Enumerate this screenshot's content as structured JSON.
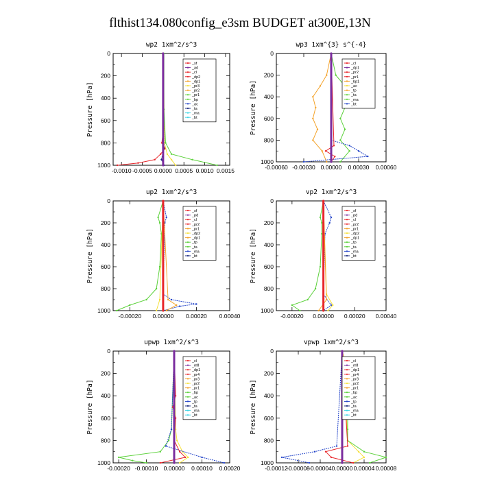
{
  "figure_title": "flthist134.080config_e3sm  BUDGET at300E,13N",
  "colors": {
    "red": "#e8262b",
    "purple": "#7b2c9e",
    "orange": "#f4a32a",
    "yellow": "#f5e03a",
    "green": "#5cd13b",
    "blue": "#2445c9",
    "navy": "#1a2a80",
    "cyan": "#3fd6e6",
    "black": "#000000"
  },
  "chart_data": [
    {
      "type": "line",
      "title": "wp2  1xm^2/s^3",
      "ylabel": "Pressure [hPa]",
      "xlim": [
        -0.0012,
        0.0016
      ],
      "ylim": [
        1000,
        0
      ],
      "x_ticks": [
        "-0.0010",
        "-0.0005",
        "0.0000",
        "0.0005",
        "0.0010",
        "0.0015"
      ],
      "y_ticks": [
        "0",
        "200",
        "400",
        "600",
        "800",
        "1000"
      ],
      "legend": [
        "_sf",
        "_ad",
        "_cl",
        "_dp2",
        "_dp1",
        "_pr3",
        "_pr2",
        "_pr1",
        "_bp",
        "_ac",
        "_ta",
        "_ma",
        "_bt"
      ],
      "series": [
        {
          "name": "_dp1",
          "color": "red",
          "p": [
            0,
            700,
            800,
            850,
            900,
            950,
            980,
            1000
          ],
          "x": [
            0,
            0,
            -3e-05,
            5e-05,
            -6e-05,
            -0.0002,
            -0.0006,
            -0.0011
          ]
        },
        {
          "name": "_pr2",
          "color": "yellow",
          "p": [
            0,
            800,
            900,
            950,
            1000
          ],
          "x": [
            1e-05,
            3e-05,
            0.0001,
            0.0002,
            0.0003
          ]
        },
        {
          "name": "_bp",
          "color": "green",
          "p": [
            0,
            500,
            800,
            900,
            950,
            1000
          ],
          "x": [
            2e-05,
            2e-05,
            6e-05,
            0.0002,
            0.0007,
            0.0013
          ]
        },
        {
          "name": "_ta",
          "color": "navy",
          "p": [
            0,
            850,
            950,
            1000
          ],
          "x": [
            0,
            2e-05,
            -4e-05,
            2e-05
          ]
        },
        {
          "name": "_bt",
          "color": "purple",
          "p": [
            0,
            1000
          ],
          "x": [
            0,
            0
          ]
        }
      ]
    },
    {
      "type": "line",
      "title": "wp3  1xm^{3} s^{-4}",
      "ylabel": "Pressure [hPa]",
      "xlim": [
        -0.0006,
        0.0006
      ],
      "ylim": [
        1000,
        0
      ],
      "x_ticks": [
        "-0.00060",
        "-0.00030",
        "0.00000",
        "0.00030",
        "0.00060"
      ],
      "y_ticks": [
        "0",
        "200",
        "400",
        "600",
        "800",
        "1000"
      ],
      "legend": [
        "_cl",
        "_dp1",
        "_pr2",
        "_pr1",
        "_bp1",
        "_ac",
        "_tp",
        "_ta",
        "_ma",
        "_bt"
      ],
      "series": [
        {
          "name": "_pr2",
          "color": "orange",
          "p": [
            0,
            200,
            300,
            400,
            500,
            600,
            700,
            800,
            900,
            1000
          ],
          "x": [
            0,
            -5e-05,
            -0.00012,
            -0.0002,
            -0.00017,
            -0.0002,
            -0.00015,
            -0.0002,
            -0.0001,
            -5e-05
          ]
        },
        {
          "name": "_bp1",
          "color": "green",
          "p": [
            0,
            200,
            300,
            400,
            500,
            600,
            700,
            800,
            900,
            1000
          ],
          "x": [
            0,
            5e-05,
            0.00015,
            0.0002,
            0.00015,
            0.0001,
            0.00015,
            0.0001,
            0.0002,
            0.0001
          ]
        },
        {
          "name": "_tp",
          "color": "blue",
          "p": [
            0,
            800,
            850,
            900,
            950,
            1000
          ],
          "x": [
            0,
            0,
            0.0002,
            0.0003,
            0.0004,
            -0.0003
          ]
        },
        {
          "name": "_dp1",
          "color": "red",
          "p": [
            0,
            850,
            900,
            950,
            1000
          ],
          "x": [
            0,
            3e-05,
            -6e-05,
            4e-05,
            0
          ]
        },
        {
          "name": "_bt",
          "color": "purple",
          "p": [
            0,
            1000
          ],
          "x": [
            0,
            0
          ]
        }
      ]
    },
    {
      "type": "line",
      "title": "up2  1xm^2/s^3",
      "ylabel": "Pressure [hPa]",
      "xlim": [
        -0.0003,
        0.0004
      ],
      "ylim": [
        1000,
        0
      ],
      "x_ticks": [
        "-0.00020",
        "0.00000",
        "0.00020",
        "0.00040"
      ],
      "y_ticks": [
        "0",
        "200",
        "400",
        "600",
        "800",
        "1000"
      ],
      "legend": [
        "_sf",
        "_pd",
        "_cl",
        "_pr2",
        "_pr1",
        "_dp2",
        "_dp1",
        "_tp",
        "_ta",
        "_ma",
        "_bt"
      ],
      "series": [
        {
          "name": "_dp2",
          "color": "green",
          "p": [
            0,
            150,
            200,
            300,
            600,
            800,
            900,
            950,
            1000
          ],
          "x": [
            0,
            -3e-05,
            -2e-05,
            -1e-05,
            -2e-05,
            -4e-05,
            -0.0001,
            -0.0002,
            -0.00028
          ]
        },
        {
          "name": "_tp",
          "color": "blue",
          "p": [
            0,
            150,
            200,
            850,
            900,
            940,
            960,
            1000
          ],
          "x": [
            0,
            2e-05,
            1e-05,
            0,
            5e-05,
            0.0002,
            0.0001,
            0
          ]
        },
        {
          "name": "_pr2",
          "color": "orange",
          "p": [
            0,
            900,
            950,
            1000
          ],
          "x": [
            0,
            3e-05,
            8e-05,
            2e-05
          ]
        },
        {
          "name": "_pr1",
          "color": "yellow",
          "p": [
            0,
            900,
            1000
          ],
          "x": [
            0,
            -2e-05,
            -4e-05
          ]
        },
        {
          "name": "_bt",
          "color": "red",
          "p": [
            0,
            1000
          ],
          "x": [
            0,
            0
          ]
        }
      ]
    },
    {
      "type": "line",
      "title": "vp2  1xm^2/s^3",
      "ylabel": "Pressure [hPa]",
      "xlim": [
        -0.0003,
        0.0004
      ],
      "ylim": [
        1000,
        0
      ],
      "x_ticks": [
        "-0.00020",
        "0.00000",
        "0.00020",
        "0.00040"
      ],
      "y_ticks": [
        "0",
        "200",
        "400",
        "600",
        "800",
        "1000"
      ],
      "legend": [
        "_sf",
        "_pd",
        "_cl",
        "_pr2",
        "_pr1",
        "_dp2",
        "_dp1",
        "_tp",
        "_ta",
        "_ma",
        "_bt"
      ],
      "series": [
        {
          "name": "_dp2",
          "color": "green",
          "p": [
            0,
            150,
            200,
            300,
            600,
            800,
            900,
            950,
            1000
          ],
          "x": [
            0,
            -2e-05,
            -1e-05,
            -1e-05,
            -2e-05,
            -5e-05,
            -0.0001,
            -0.0002,
            -0.00015
          ]
        },
        {
          "name": "_tp",
          "color": "blue",
          "p": [
            0,
            150,
            200,
            300,
            850,
            950,
            1000
          ],
          "x": [
            0,
            5e-05,
            4e-05,
            1e-05,
            0,
            5e-05,
            0
          ]
        },
        {
          "name": "_pr2",
          "color": "yellow",
          "p": [
            0,
            850,
            950,
            1000
          ],
          "x": [
            0,
            2e-05,
            6e-05,
            3e-05
          ]
        },
        {
          "name": "_dp1",
          "color": "orange",
          "p": [
            0,
            900,
            1000
          ],
          "x": [
            0,
            2e-05,
            -3e-05
          ]
        },
        {
          "name": "_bt",
          "color": "red",
          "p": [
            0,
            1000
          ],
          "x": [
            0,
            0
          ]
        }
      ]
    },
    {
      "type": "line",
      "title": "upwp  1xm^2/s^3",
      "ylabel": "Pressure [hPa]",
      "xlim": [
        -0.00022,
        0.0002
      ],
      "ylim": [
        1000,
        0
      ],
      "x_ticks": [
        "-0.00020",
        "-0.00010",
        "0.00000",
        "0.00010",
        "0.00020"
      ],
      "y_ticks": [
        "0",
        "200",
        "400",
        "600",
        "800",
        "1000"
      ],
      "legend": [
        "_cl",
        "_mfl",
        "_dp1",
        "_pr4",
        "_pr3",
        "_pr2",
        "_pr1",
        "_bp",
        "_ac",
        "_tp",
        "_ta",
        "_ma",
        "_bt"
      ],
      "series": [
        {
          "name": "_pr2",
          "color": "yellow",
          "p": [
            0,
            700,
            800,
            900,
            950,
            1000
          ],
          "x": [
            0,
            5e-06,
            1e-05,
            3e-05,
            5e-05,
            2e-05
          ]
        },
        {
          "name": "_bp",
          "color": "green",
          "p": [
            0,
            700,
            800,
            900,
            950,
            980,
            1000
          ],
          "x": [
            0,
            -1e-05,
            -2e-05,
            -5e-05,
            -0.0002,
            -0.00015,
            -0.0001
          ]
        },
        {
          "name": "_tp",
          "color": "blue",
          "p": [
            0,
            700,
            850,
            950,
            1000
          ],
          "x": [
            0,
            -1e-05,
            -3e-05,
            0.0001,
            0.00018
          ]
        },
        {
          "name": "_dp1",
          "color": "red",
          "p": [
            0,
            400,
            500,
            600,
            800,
            900,
            950,
            1000
          ],
          "x": [
            0,
            5e-06,
            -5e-06,
            5e-06,
            0,
            2e-05,
            4e-05,
            -5e-05
          ]
        },
        {
          "name": "_bt",
          "color": "purple",
          "p": [
            0,
            1000
          ],
          "x": [
            0,
            0
          ]
        }
      ]
    },
    {
      "type": "line",
      "title": "vpwp  1xm^2/s^3",
      "ylabel": "Pressure [hPa]",
      "xlim": [
        -0.00012,
        8e-05
      ],
      "ylim": [
        1000,
        0
      ],
      "x_ticks": [
        "-0.00012",
        "-0.00008",
        "-0.00004",
        "0.00000",
        "0.00004",
        "0.00008"
      ],
      "y_ticks": [
        "0",
        "200",
        "400",
        "600",
        "800",
        "1000"
      ],
      "legend": [
        "_cl",
        "_mfl",
        "_dp1",
        "_pr4",
        "_pr3",
        "_pr2",
        "_pr1",
        "_bp",
        "_ac",
        "_tp",
        "_ta",
        "_ma",
        "_bt"
      ],
      "series": [
        {
          "name": "_pr2",
          "color": "yellow",
          "p": [
            0,
            150,
            200,
            250,
            300,
            800,
            900,
            950,
            1000
          ],
          "x": [
            0,
            1e-05,
            2e-05,
            1e-05,
            5e-06,
            1e-05,
            3e-05,
            4e-05,
            2e-05
          ]
        },
        {
          "name": "_bp",
          "color": "green",
          "p": [
            0,
            300,
            400,
            500,
            600,
            700,
            800,
            900,
            950,
            1000
          ],
          "x": [
            0,
            5e-06,
            2e-05,
            1.5e-05,
            1e-05,
            1e-05,
            1e-05,
            4e-05,
            8e-05,
            5e-05
          ]
        },
        {
          "name": "_tp",
          "color": "blue",
          "p": [
            0,
            850,
            900,
            950,
            1000
          ],
          "x": [
            0,
            -1e-05,
            -5e-05,
            -0.00011,
            -6e-05
          ]
        },
        {
          "name": "_dp1",
          "color": "red",
          "p": [
            0,
            850,
            900,
            950,
            1000
          ],
          "x": [
            0,
            1e-05,
            -3e-05,
            -2e-05,
            2e-05
          ]
        },
        {
          "name": "_bt",
          "color": "purple",
          "p": [
            0,
            1000
          ],
          "x": [
            0,
            0
          ]
        }
      ]
    }
  ]
}
